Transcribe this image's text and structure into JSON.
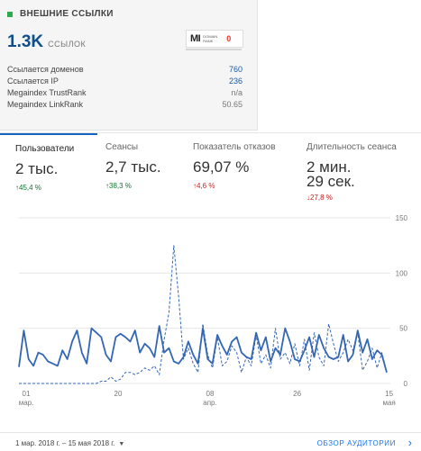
{
  "backlinks": {
    "title": "ВНЕШНИЕ ССЫЛКИ",
    "count": "1.3K",
    "count_unit": "ССЫЛОК",
    "badge": {
      "logo": "MI",
      "sub": "DOMAIN RANK",
      "rank": "0"
    },
    "rows": [
      {
        "label": "Ссылается доменов",
        "value": "760"
      },
      {
        "label": "Ссылается IP",
        "value": "236"
      },
      {
        "label": "Megaindex TrustRank",
        "value": "n/a"
      },
      {
        "label": "Megaindex LinkRank",
        "value": "50.65"
      }
    ]
  },
  "analytics": {
    "metrics": [
      {
        "label": "Пользователи",
        "value": "2 тыс.",
        "change": "↑45,4 %",
        "direction": "up"
      },
      {
        "label": "Сеансы",
        "value": "2,7 тыс.",
        "change": "↑38,3 %",
        "direction": "up"
      },
      {
        "label": "Показатель отказов",
        "value": "69,07 %",
        "change": "↑4,6 %",
        "direction": "down"
      },
      {
        "label": "Длительность сеанса",
        "value_line1": "2 мин.",
        "value_line2": "29 сек.",
        "change": "↓27,8 %",
        "direction": "down"
      }
    ],
    "date_range": "1 мар. 2018 г. – 15 мая 2018 г.",
    "audience_link": "ОБЗОР АУДИТОРИИ",
    "colors": {
      "accent": "#1565c0",
      "up": "#137333",
      "down": "#c5221f",
      "link": "#1a73e8"
    }
  },
  "chart_data": {
    "type": "line",
    "ylim": [
      0,
      150
    ],
    "yticks": [
      "0",
      "50",
      "100",
      "150"
    ],
    "xticks": [
      {
        "day": 0,
        "l1": "01",
        "l2": "мар."
      },
      {
        "day": 19,
        "l1": "20",
        "l2": ""
      },
      {
        "day": 38,
        "l1": "08",
        "l2": "апр."
      },
      {
        "day": 56,
        "l1": "26",
        "l2": ""
      },
      {
        "day": 75,
        "l1": "15",
        "l2": "мая"
      }
    ],
    "series": [
      {
        "style": "solid",
        "color": "#3366b5",
        "values": [
          15,
          48,
          22,
          16,
          28,
          26,
          20,
          18,
          16,
          30,
          22,
          38,
          48,
          28,
          18,
          50,
          46,
          42,
          26,
          20,
          42,
          45,
          42,
          38,
          48,
          28,
          36,
          32,
          24,
          52,
          28,
          32,
          20,
          18,
          24,
          38,
          26,
          18,
          50,
          22,
          18,
          44,
          34,
          26,
          38,
          42,
          28,
          24,
          22,
          46,
          30,
          42,
          20,
          32,
          26,
          50,
          38,
          22,
          20,
          30,
          42,
          24,
          44,
          32,
          24,
          22,
          24,
          44,
          20,
          26,
          48,
          28,
          40,
          22,
          30,
          26,
          10
        ]
      },
      {
        "style": "dashed",
        "color": "#3366b5",
        "values": [
          0,
          0,
          0,
          0,
          0,
          0,
          0,
          0,
          0,
          0,
          0,
          0,
          0,
          0,
          0,
          0,
          0,
          2,
          2,
          6,
          2,
          4,
          10,
          10,
          8,
          10,
          14,
          12,
          16,
          8,
          40,
          64,
          125,
          78,
          22,
          32,
          18,
          10,
          54,
          26,
          14,
          42,
          16,
          20,
          34,
          28,
          10,
          24,
          16,
          44,
          18,
          26,
          14,
          50,
          22,
          28,
          18,
          36,
          16,
          40,
          12,
          46,
          24,
          16,
          54,
          36,
          20,
          28,
          40,
          30,
          46,
          12,
          20,
          32,
          14,
          28,
          10
        ]
      }
    ]
  }
}
